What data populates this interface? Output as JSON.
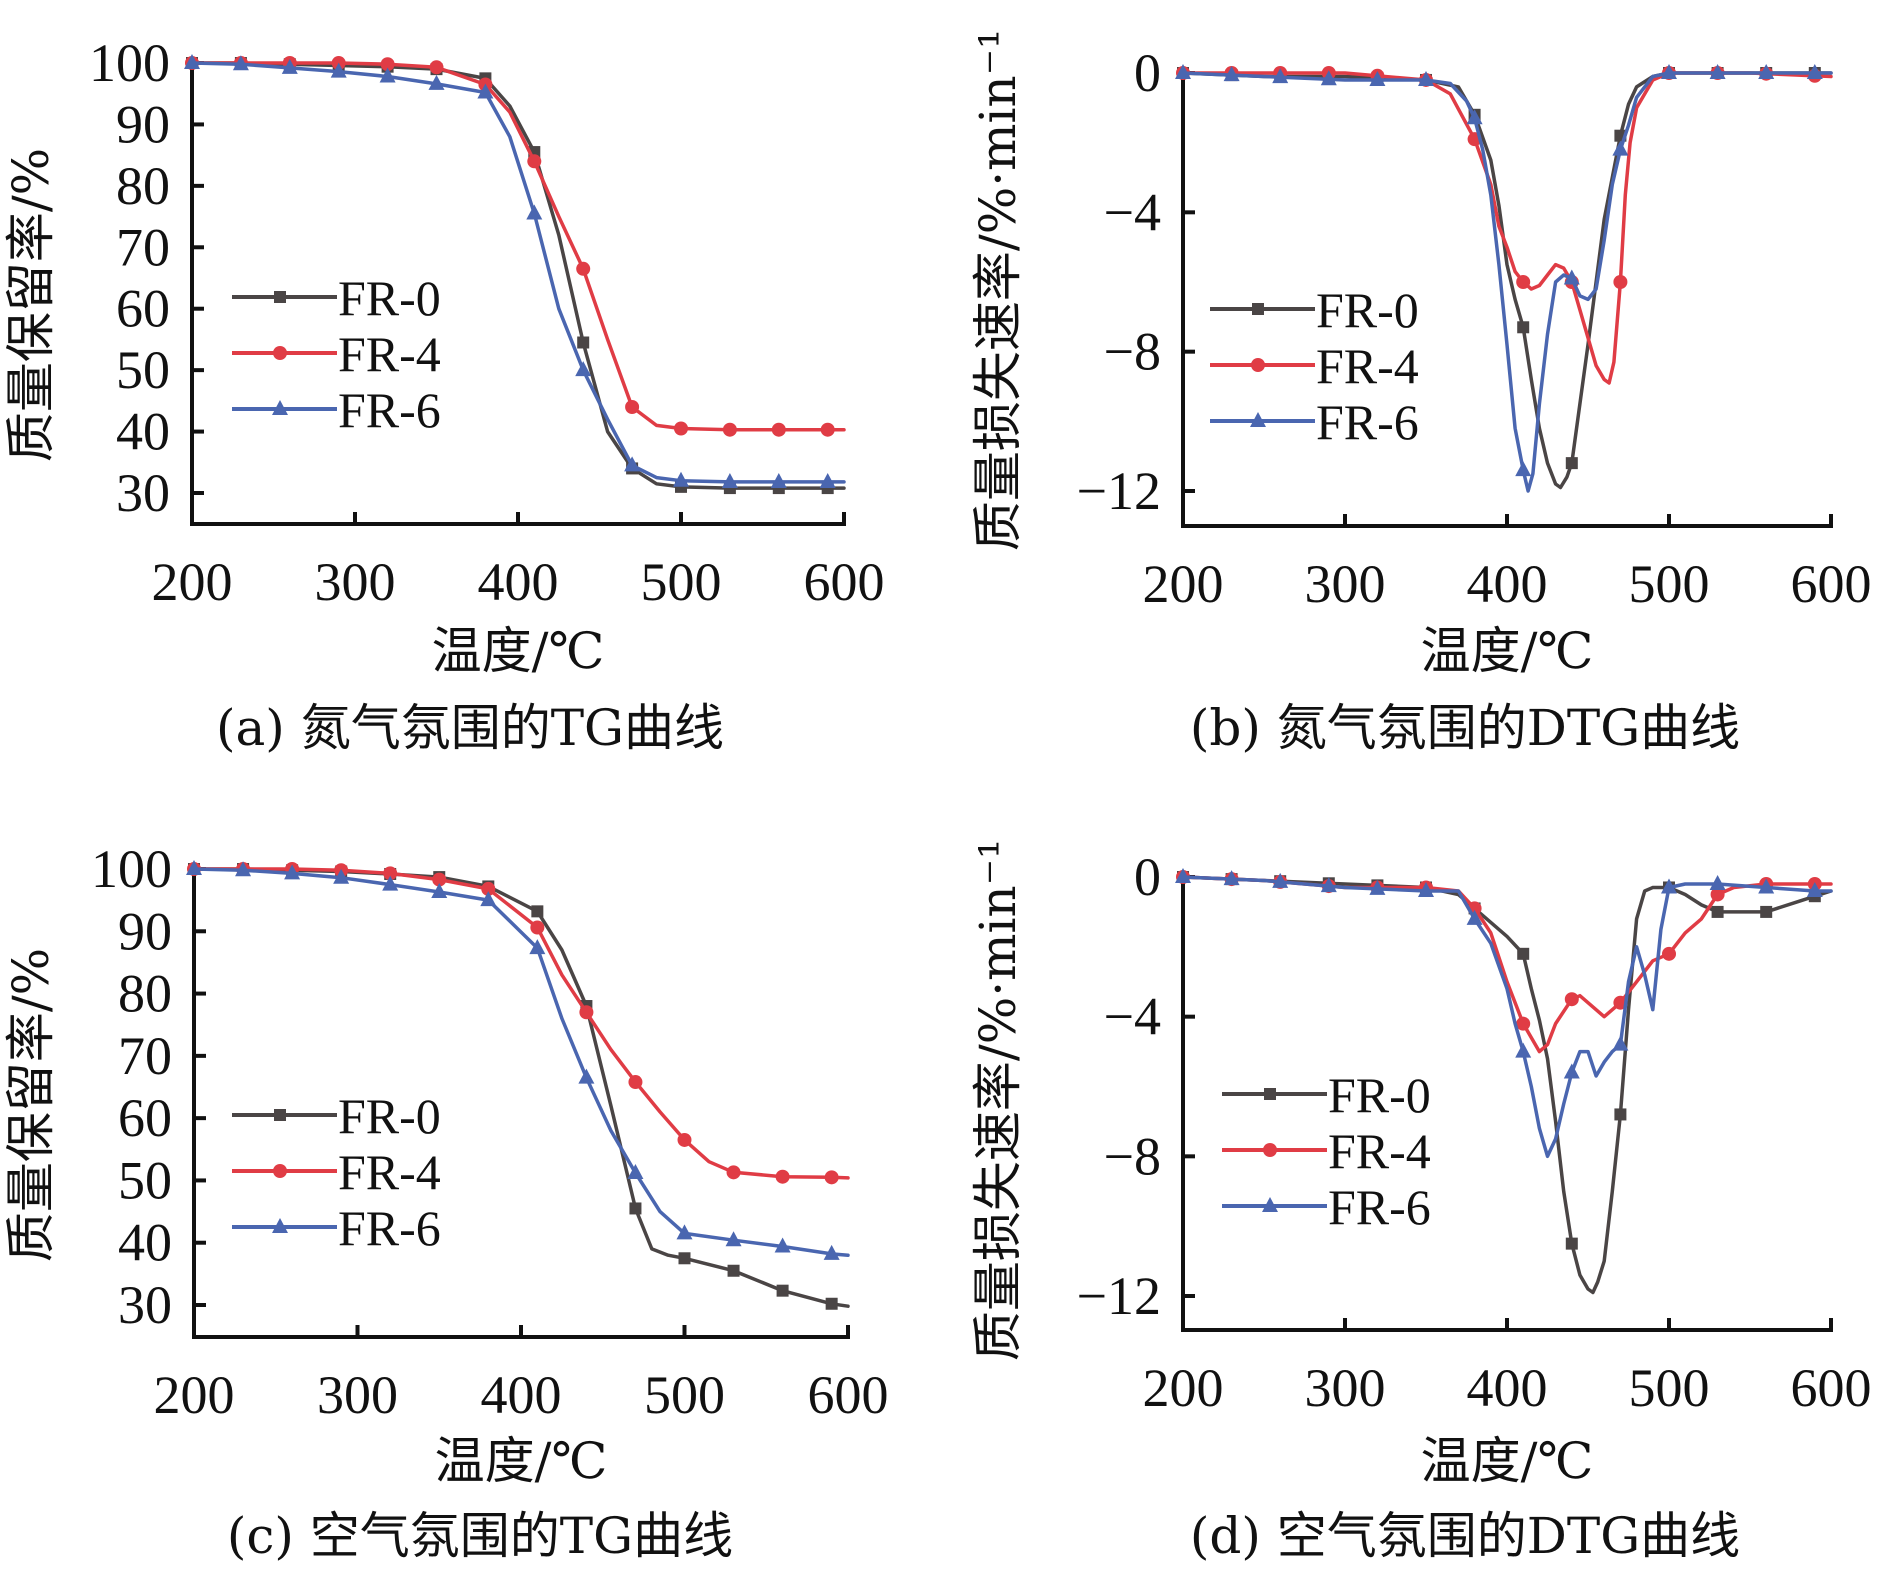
{
  "figure": {
    "series_names": [
      "FR-0",
      "FR-4",
      "FR-6"
    ],
    "colors": {
      "FR-0": "#4a4545",
      "FR-4": "#e03c45",
      "FR-6": "#4a66b0"
    },
    "markers": {
      "FR-0": "square",
      "FR-4": "circle",
      "FR-6": "triangle"
    }
  },
  "chart_data": [
    {
      "id": "a",
      "type": "line",
      "title": "",
      "caption": "(a) 氮气氛围的TG曲线",
      "xlabel": "温度/℃",
      "ylabel": "质量保留率/%",
      "xlim": [
        200,
        600
      ],
      "ylim": [
        25,
        100
      ],
      "xticks": [
        200,
        300,
        400,
        500,
        600
      ],
      "yticks": [
        30,
        40,
        50,
        60,
        70,
        80,
        90,
        100
      ],
      "legend": "middle-left",
      "grid": false,
      "series": [
        {
          "name": "FR-0",
          "x": [
            200,
            230,
            260,
            290,
            320,
            350,
            380,
            395,
            410,
            425,
            440,
            455,
            470,
            485,
            500,
            530,
            560,
            590,
            600
          ],
          "y": [
            100,
            100,
            99.8,
            99.6,
            99.4,
            99,
            97.5,
            93,
            85.5,
            72,
            54.5,
            40,
            34,
            31.5,
            31,
            30.8,
            30.8,
            30.8,
            30.8
          ],
          "marker_x": [
            200,
            230,
            260,
            290,
            320,
            350,
            380,
            410,
            440,
            470,
            500,
            530,
            560,
            590
          ]
        },
        {
          "name": "FR-4",
          "x": [
            200,
            230,
            260,
            290,
            320,
            350,
            380,
            395,
            410,
            425,
            440,
            455,
            470,
            485,
            500,
            530,
            560,
            590,
            600
          ],
          "y": [
            100,
            100,
            100,
            100,
            99.8,
            99.3,
            96.5,
            92,
            84,
            75,
            66.5,
            55,
            44,
            41,
            40.5,
            40.3,
            40.3,
            40.3,
            40.3
          ],
          "marker_x": [
            200,
            230,
            260,
            290,
            320,
            350,
            380,
            410,
            440,
            470,
            500,
            530,
            560,
            590
          ]
        },
        {
          "name": "FR-6",
          "x": [
            200,
            230,
            260,
            290,
            320,
            350,
            380,
            395,
            410,
            425,
            440,
            455,
            470,
            485,
            500,
            530,
            560,
            590,
            600
          ],
          "y": [
            100,
            99.8,
            99.2,
            98.6,
            97.8,
            96.6,
            95.2,
            88,
            75.5,
            60,
            50,
            42,
            34.5,
            32.5,
            32,
            31.8,
            31.8,
            31.8,
            31.8
          ],
          "marker_x": [
            200,
            230,
            260,
            290,
            320,
            350,
            380,
            410,
            440,
            470,
            500,
            530,
            560,
            590
          ]
        }
      ]
    },
    {
      "id": "b",
      "type": "line",
      "title": "",
      "caption": "(b) 氮气氛围的DTG曲线",
      "xlabel": "温度/℃",
      "ylabel": "质量损失速率/%·min⁻¹",
      "xlim": [
        200,
        600
      ],
      "ylim": [
        -13,
        0.3
      ],
      "xticks": [
        200,
        300,
        400,
        500,
        600
      ],
      "yticks": [
        0,
        -4,
        -8,
        -12
      ],
      "ytick_labels": [
        "0",
        "−4",
        "−8",
        "−12"
      ],
      "legend": "middle-left",
      "grid": false,
      "series": [
        {
          "name": "FR-0",
          "x": [
            200,
            250,
            300,
            350,
            370,
            380,
            390,
            395,
            400,
            405,
            410,
            415,
            420,
            425,
            430,
            433,
            437,
            440,
            445,
            450,
            455,
            460,
            465,
            470,
            475,
            480,
            490,
            500,
            550,
            600
          ],
          "y": [
            0,
            -0.1,
            -0.1,
            -0.2,
            -0.4,
            -1.2,
            -2.5,
            -3.8,
            -5.5,
            -6.5,
            -7.3,
            -8.8,
            -10.2,
            -11.2,
            -11.8,
            -11.9,
            -11.6,
            -11.2,
            -9.5,
            -7.8,
            -6,
            -4.2,
            -3,
            -1.8,
            -0.9,
            -0.4,
            -0.1,
            0,
            0,
            0
          ],
          "marker_x": [
            200,
            230,
            260,
            290,
            320,
            350,
            380,
            410,
            440,
            470,
            500,
            530,
            560,
            590
          ]
        },
        {
          "name": "FR-4",
          "x": [
            200,
            250,
            300,
            350,
            365,
            380,
            390,
            395,
            400,
            405,
            410,
            415,
            420,
            425,
            430,
            435,
            440,
            445,
            450,
            455,
            460,
            463,
            466,
            470,
            473,
            476,
            480,
            490,
            500,
            550,
            600
          ],
          "y": [
            0,
            0,
            0,
            -0.2,
            -0.6,
            -1.9,
            -3.2,
            -4.4,
            -5,
            -5.7,
            -6,
            -6.2,
            -6.1,
            -5.8,
            -5.5,
            -5.6,
            -6,
            -6.8,
            -7.6,
            -8.4,
            -8.8,
            -8.9,
            -8.3,
            -6,
            -3.5,
            -2,
            -1,
            -0.2,
            0,
            0,
            -0.1
          ],
          "marker_x": [
            200,
            230,
            260,
            290,
            320,
            350,
            380,
            410,
            440,
            470,
            500,
            530,
            560,
            590
          ]
        },
        {
          "name": "FR-6",
          "x": [
            200,
            250,
            300,
            350,
            365,
            375,
            380,
            385,
            390,
            395,
            400,
            405,
            410,
            413,
            416,
            420,
            425,
            430,
            435,
            440,
            445,
            450,
            455,
            460,
            465,
            470,
            475,
            480,
            490,
            500,
            550,
            600
          ],
          "y": [
            0,
            -0.1,
            -0.2,
            -0.2,
            -0.3,
            -0.8,
            -1.3,
            -2.2,
            -3.5,
            -5.5,
            -7.8,
            -10.2,
            -11.4,
            -12,
            -11.5,
            -9.5,
            -7.5,
            -6,
            -5.8,
            -5.9,
            -6.4,
            -6.5,
            -6.2,
            -4.8,
            -3.2,
            -2.2,
            -1.5,
            -0.7,
            -0.1,
            0,
            0,
            0
          ],
          "marker_x": [
            200,
            230,
            260,
            290,
            320,
            350,
            380,
            410,
            440,
            470,
            500,
            530,
            560,
            590
          ]
        }
      ]
    },
    {
      "id": "c",
      "type": "line",
      "title": "",
      "caption": "(c) 空气氛围的TG曲线",
      "xlabel": "温度/℃",
      "ylabel": "质量保留率/%",
      "xlim": [
        200,
        600
      ],
      "ylim": [
        25,
        100
      ],
      "xticks": [
        200,
        300,
        400,
        500,
        600
      ],
      "yticks": [
        30,
        40,
        50,
        60,
        70,
        80,
        90,
        100
      ],
      "legend": "lower-left",
      "grid": false,
      "series": [
        {
          "name": "FR-0",
          "x": [
            200,
            230,
            260,
            290,
            320,
            350,
            380,
            410,
            425,
            440,
            455,
            470,
            480,
            490,
            500,
            530,
            560,
            590,
            600
          ],
          "y": [
            100,
            100,
            99.8,
            99.6,
            99.2,
            98.7,
            97.2,
            93.2,
            87,
            78,
            62,
            45.5,
            39,
            38,
            37.5,
            35.5,
            32.3,
            30.2,
            29.8
          ],
          "marker_x": [
            200,
            230,
            260,
            290,
            320,
            350,
            380,
            410,
            440,
            470,
            500,
            530,
            560,
            590
          ]
        },
        {
          "name": "FR-4",
          "x": [
            200,
            230,
            260,
            290,
            320,
            350,
            380,
            410,
            425,
            440,
            455,
            470,
            485,
            500,
            515,
            530,
            560,
            590,
            600
          ],
          "y": [
            100,
            100,
            100,
            99.8,
            99.3,
            98.3,
            96.8,
            90.6,
            83,
            77,
            71,
            65.8,
            61,
            56.5,
            53,
            51.3,
            50.6,
            50.5,
            50.4
          ],
          "marker_x": [
            200,
            230,
            260,
            290,
            320,
            350,
            380,
            410,
            440,
            470,
            500,
            530,
            560,
            590
          ]
        },
        {
          "name": "FR-6",
          "x": [
            200,
            230,
            260,
            290,
            320,
            350,
            380,
            410,
            425,
            440,
            455,
            470,
            485,
            500,
            530,
            560,
            590,
            600
          ],
          "y": [
            100,
            99.8,
            99.3,
            98.6,
            97.5,
            96.3,
            95,
            87.3,
            76,
            66.5,
            58,
            51.2,
            45,
            41.5,
            40.4,
            39.4,
            38.2,
            38
          ],
          "marker_x": [
            200,
            230,
            260,
            290,
            320,
            350,
            380,
            410,
            440,
            470,
            500,
            530,
            560,
            590
          ]
        }
      ]
    },
    {
      "id": "d",
      "type": "line",
      "title": "",
      "caption": "(d) 空气氛围的DTG曲线",
      "xlabel": "温度/℃",
      "ylabel": "质量损失速率/%·min⁻¹",
      "xlim": [
        200,
        600
      ],
      "ylim": [
        -13,
        0.3
      ],
      "xticks": [
        200,
        300,
        400,
        500,
        600
      ],
      "yticks": [
        0,
        -4,
        -8,
        -12
      ],
      "ytick_labels": [
        "0",
        "−4",
        "−8",
        "−12"
      ],
      "legend": "lower-left",
      "grid": false,
      "series": [
        {
          "name": "FR-0",
          "x": [
            200,
            250,
            300,
            350,
            370,
            380,
            390,
            400,
            410,
            415,
            420,
            425,
            430,
            435,
            440,
            445,
            450,
            453,
            456,
            460,
            465,
            470,
            475,
            480,
            485,
            490,
            500,
            510,
            520,
            530,
            560,
            580,
            600
          ],
          "y": [
            0,
            -0.1,
            -0.2,
            -0.3,
            -0.5,
            -0.9,
            -1.3,
            -1.7,
            -2.2,
            -3.2,
            -4.1,
            -5.2,
            -7,
            -9,
            -10.5,
            -11.4,
            -11.8,
            -11.9,
            -11.6,
            -11,
            -9,
            -6.8,
            -3.8,
            -1.2,
            -0.4,
            -0.3,
            -0.3,
            -0.5,
            -0.8,
            -1,
            -1,
            -0.7,
            -0.4
          ],
          "marker_x": [
            200,
            230,
            260,
            290,
            320,
            350,
            380,
            410,
            440,
            470,
            500,
            530,
            560,
            590
          ]
        },
        {
          "name": "FR-4",
          "x": [
            200,
            250,
            300,
            350,
            370,
            380,
            390,
            400,
            410,
            415,
            420,
            425,
            430,
            440,
            445,
            450,
            455,
            460,
            465,
            470,
            475,
            480,
            490,
            500,
            510,
            520,
            530,
            540,
            560,
            580,
            600
          ],
          "y": [
            0,
            -0.1,
            -0.3,
            -0.3,
            -0.4,
            -0.9,
            -1.6,
            -3,
            -4.2,
            -4.6,
            -5,
            -4.8,
            -4.2,
            -3.5,
            -3.4,
            -3.6,
            -3.8,
            -4,
            -3.8,
            -3.6,
            -3.3,
            -3,
            -2.4,
            -2.2,
            -1.6,
            -1.2,
            -0.5,
            -0.3,
            -0.2,
            -0.2,
            -0.2
          ],
          "marker_x": [
            200,
            230,
            260,
            290,
            320,
            350,
            380,
            410,
            440,
            470,
            500,
            530,
            560,
            590
          ]
        },
        {
          "name": "FR-6",
          "x": [
            200,
            250,
            300,
            350,
            370,
            380,
            390,
            400,
            405,
            410,
            415,
            420,
            425,
            430,
            435,
            440,
            445,
            450,
            455,
            460,
            465,
            470,
            475,
            480,
            485,
            490,
            495,
            500,
            510,
            520,
            530,
            560,
            590,
            600
          ],
          "y": [
            0,
            -0.1,
            -0.3,
            -0.4,
            -0.4,
            -1.2,
            -1.9,
            -3.2,
            -4.2,
            -5,
            -6,
            -7.2,
            -8,
            -7.5,
            -6.5,
            -5.6,
            -5,
            -5,
            -5.7,
            -5.3,
            -5,
            -4.8,
            -3,
            -2,
            -2.8,
            -3.8,
            -1.5,
            -0.3,
            -0.2,
            -0.2,
            -0.2,
            -0.3,
            -0.4,
            -0.4
          ],
          "marker_x": [
            200,
            230,
            260,
            290,
            320,
            350,
            380,
            410,
            440,
            470,
            500,
            530,
            560,
            590
          ]
        }
      ]
    }
  ]
}
